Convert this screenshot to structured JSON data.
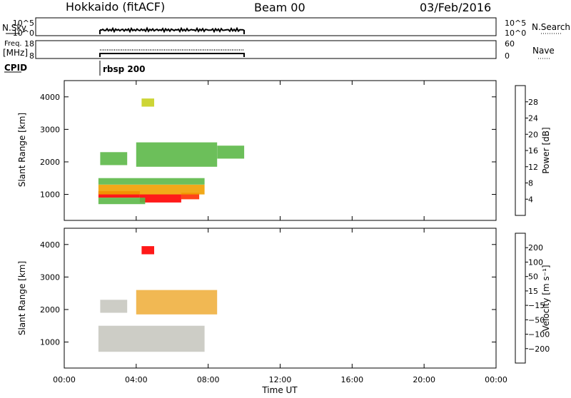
{
  "header": {
    "title": "Hokkaido (fitACF)",
    "beam": "Beam 00",
    "date": "03/Feb/2016"
  },
  "strip_nsky": {
    "left_label": "N.Sky",
    "right_label": "N.Search",
    "left_ticks": [
      "10^5",
      "10^0"
    ],
    "right_ticks": [
      "10^5",
      "10^0"
    ]
  },
  "strip_freq": {
    "left_label_1": "Freq.",
    "left_label_2": "[MHz]",
    "right_label": "Nave",
    "left_ticks": [
      "18",
      "8"
    ],
    "right_ticks": [
      "60",
      "0"
    ]
  },
  "cpid": {
    "label": "CPID",
    "program": "rbsp 200"
  },
  "colors": {
    "power_scale": [
      "#0000ff",
      "#1c3fb0",
      "#3a8060",
      "#5cb848",
      "#c8d020",
      "#f0a000",
      "#ff7000",
      "#ff3000",
      "#ff0000"
    ],
    "velocity_scale": [
      "#ff0000",
      "#ff5000",
      "#ff9000",
      "#f0b040",
      "#c8c8c0",
      "#60c840",
      "#2a7050",
      "#2050a0",
      "#1020d0"
    ]
  },
  "chart_data": [
    {
      "type": "heatmap",
      "name": "power",
      "ylabel": "Slant Range [km]",
      "xlim": [
        0,
        24
      ],
      "ylim": [
        200,
        4500
      ],
      "y_ticks": [
        "1000",
        "2000",
        "3000",
        "4000"
      ],
      "colorbar": {
        "label": "Power [dB]",
        "range": [
          0,
          32
        ],
        "ticks": [
          "4",
          "8",
          "12",
          "16",
          "20",
          "24",
          "28"
        ]
      },
      "regions": [
        {
          "t0": 1.9,
          "t1": 4.2,
          "r0": 900,
          "r1": 1100,
          "value": 30
        },
        {
          "t0": 4.2,
          "t1": 6.5,
          "r0": 750,
          "r1": 1000,
          "value": 29
        },
        {
          "t0": 6.5,
          "t1": 7.5,
          "r0": 850,
          "r1": 1050,
          "value": 26
        },
        {
          "t0": 1.9,
          "t1": 7.8,
          "r0": 1000,
          "r1": 1300,
          "value": 18
        },
        {
          "t0": 1.9,
          "t1": 7.8,
          "r0": 1300,
          "r1": 1500,
          "value": 13
        },
        {
          "t0": 1.9,
          "t1": 4.5,
          "r0": 700,
          "r1": 900,
          "value": 12
        },
        {
          "t0": 2.0,
          "t1": 3.5,
          "r0": 1900,
          "r1": 2300,
          "value": 14
        },
        {
          "t0": 4.0,
          "t1": 8.5,
          "r0": 1850,
          "r1": 2600,
          "value": 13
        },
        {
          "t0": 8.5,
          "t1": 10.0,
          "r0": 2100,
          "r1": 2500,
          "value": 11
        },
        {
          "t0": 4.3,
          "t1": 5.0,
          "r0": 3700,
          "r1": 3950,
          "value": 16
        }
      ]
    },
    {
      "type": "heatmap",
      "name": "velocity",
      "ylabel": "Slant Range [km]",
      "xlabel": "Time UT",
      "xlim": [
        0,
        24
      ],
      "ylim": [
        200,
        4500
      ],
      "x_ticks": [
        "00:00",
        "04:00",
        "08:00",
        "12:00",
        "16:00",
        "20:00",
        "00:00"
      ],
      "y_ticks": [
        "1000",
        "2000",
        "3000",
        "4000"
      ],
      "colorbar": {
        "label": "Velocity [m s⁻¹]",
        "ticks": [
          "200",
          "100",
          "50",
          "15",
          "−15",
          "−50",
          "−100",
          "−200"
        ]
      },
      "regions": [
        {
          "t0": 1.9,
          "t1": 7.8,
          "r0": 700,
          "r1": 1500,
          "value": 0
        },
        {
          "t0": 2.0,
          "t1": 3.5,
          "r0": 1900,
          "r1": 2300,
          "value": 0
        },
        {
          "t0": 4.0,
          "t1": 8.5,
          "r0": 1850,
          "r1": 2600,
          "value": -20
        },
        {
          "t0": 4.3,
          "t1": 5.0,
          "r0": 3700,
          "r1": 3950,
          "value": -220
        }
      ]
    }
  ]
}
